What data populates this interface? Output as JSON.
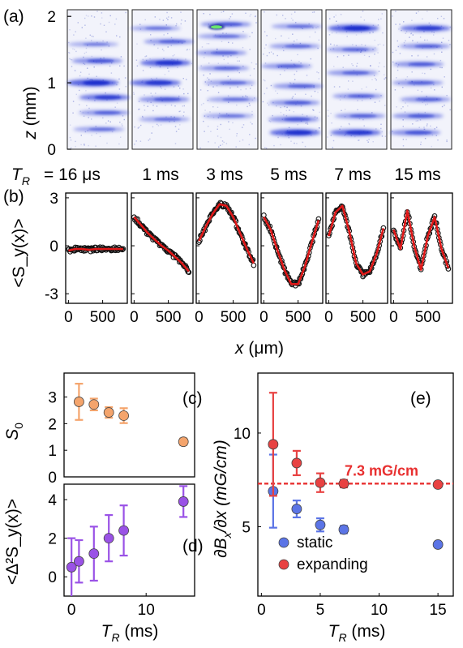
{
  "panel_labels": {
    "a": "(a)",
    "b": "(b)",
    "c": "(c)",
    "d": "(d)",
    "e": "(e)"
  },
  "chart_data": [
    {
      "panel": "a",
      "type": "heatmap",
      "ylabel_var": "z",
      "ylabel_unit": " (mm)",
      "y_ticks": [
        "0",
        "1",
        "2"
      ],
      "ylim": [
        0,
        2.1
      ],
      "tr_prefix": "T",
      "tr_sub": "R",
      "columns": [
        "= 16 μs",
        "1 ms",
        "3 ms",
        "5 ms",
        "7 ms",
        "15 ms"
      ],
      "stripes": [
        [
          [
            1.33,
            0.55
          ],
          [
            1.0,
            1.0
          ],
          [
            0.78,
            0.75
          ],
          [
            0.55,
            0.45
          ],
          [
            0.3,
            0.35
          ],
          [
            1.58,
            0.25
          ]
        ],
        [
          [
            1.62,
            0.45
          ],
          [
            1.3,
            0.9
          ],
          [
            1.0,
            0.85
          ],
          [
            0.75,
            0.55
          ],
          [
            0.45,
            0.35
          ],
          [
            1.82,
            0.3
          ]
        ],
        [
          [
            1.88,
            0.5
          ],
          [
            1.7,
            0.35
          ],
          [
            1.45,
            0.45
          ],
          [
            1.22,
            0.4
          ],
          [
            1.0,
            0.4
          ],
          [
            0.75,
            0.35
          ],
          [
            0.5,
            0.3
          ]
        ],
        [
          [
            1.85,
            0.35
          ],
          [
            1.55,
            0.4
          ],
          [
            1.25,
            0.45
          ],
          [
            0.95,
            0.45
          ],
          [
            0.7,
            0.5
          ],
          [
            0.45,
            0.55
          ],
          [
            0.25,
            0.95
          ]
        ],
        [
          [
            1.82,
            1.0
          ],
          [
            1.5,
            0.4
          ],
          [
            1.15,
            0.45
          ],
          [
            0.8,
            0.45
          ],
          [
            0.5,
            0.45
          ],
          [
            0.25,
            0.85
          ]
        ],
        [
          [
            1.82,
            0.8
          ],
          [
            1.55,
            0.45
          ],
          [
            1.28,
            0.5
          ],
          [
            1.0,
            0.45
          ],
          [
            0.75,
            0.45
          ],
          [
            0.5,
            0.5
          ],
          [
            0.25,
            0.55
          ]
        ]
      ],
      "bright_spot": {
        "column": 2,
        "z": 1.84
      }
    },
    {
      "panel": "b",
      "type": "scatter",
      "ylabel": "<S_y(x)>",
      "xlabel_var": "x",
      "xlabel_unit": " (μm)",
      "x_ticks": [
        "0",
        "500"
      ],
      "y_ticks": [
        "3",
        "0",
        "-3"
      ],
      "xlim": [
        -40,
        860
      ],
      "ylim": [
        -3.6,
        3.3
      ],
      "series": [
        {
          "x": [
            0,
            100,
            200,
            300,
            400,
            500,
            600,
            700,
            800
          ],
          "y": [
            -0.3,
            -0.2,
            -0.2,
            -0.25,
            -0.2,
            -0.2,
            -0.2,
            -0.2,
            -0.2
          ]
        },
        {
          "x": [
            0,
            100,
            200,
            300,
            400,
            500,
            600,
            700,
            800
          ],
          "y": [
            1.8,
            1.3,
            0.8,
            0.4,
            0.0,
            -0.3,
            -0.7,
            -1.1,
            -1.6
          ]
        },
        {
          "x": [
            0,
            100,
            200,
            300,
            400,
            500,
            600,
            700,
            800
          ],
          "y": [
            0.3,
            1.2,
            2.0,
            2.6,
            2.5,
            1.8,
            0.8,
            -0.2,
            -1.1
          ]
        },
        {
          "x": [
            0,
            100,
            200,
            300,
            400,
            500,
            600,
            700,
            800
          ],
          "y": [
            1.8,
            1.0,
            -0.3,
            -1.5,
            -2.4,
            -2.4,
            -1.3,
            0.2,
            1.6
          ]
        },
        {
          "x": [
            0,
            100,
            200,
            300,
            400,
            500,
            600,
            700,
            800
          ],
          "y": [
            0.6,
            2.1,
            2.5,
            0.9,
            -1.1,
            -1.8,
            -1.6,
            -0.5,
            1.1
          ]
        },
        {
          "x": [
            0,
            100,
            200,
            300,
            400,
            500,
            600,
            700,
            800
          ],
          "y": [
            1.0,
            -0.2,
            2.2,
            0.0,
            -1.5,
            0.6,
            1.8,
            -0.2,
            -1.4
          ]
        }
      ]
    },
    {
      "panel": "c",
      "type": "scatter",
      "ylabel_main": "S",
      "ylabel_sub": "0",
      "y_ticks": [
        "0",
        "1",
        "2",
        "3"
      ],
      "xlim": [
        -1,
        16.5
      ],
      "ylim": [
        0,
        3.9
      ],
      "color": "#f4a46c",
      "x": [
        1,
        3,
        5,
        7,
        15
      ],
      "y": [
        2.82,
        2.72,
        2.42,
        2.3,
        1.32
      ],
      "err": [
        0.68,
        0.22,
        0.2,
        0.28,
        0.12
      ]
    },
    {
      "panel": "d",
      "type": "scatter",
      "ylabel": "<Δ²S_y(x)>",
      "xlabel_main": "T",
      "xlabel_sub": "R",
      "xlabel_unit": " (ms)",
      "x_ticks": [
        "0",
        "10"
      ],
      "y_ticks": [
        "0",
        "2",
        "4"
      ],
      "xlim": [
        -1,
        16.5
      ],
      "ylim": [
        -1,
        4.8
      ],
      "color": "#9a52e6",
      "x": [
        0,
        1,
        3,
        5,
        7,
        15
      ],
      "y": [
        0.5,
        0.8,
        1.2,
        2.0,
        2.4,
        3.9
      ],
      "err": [
        1.5,
        1.1,
        1.4,
        1.2,
        1.3,
        0.8
      ]
    },
    {
      "panel": "e",
      "type": "scatter",
      "ylabel_main": "∂B",
      "ylabel_sub": "x",
      "ylabel_rest": "/∂x (mG/cm)",
      "xlabel_main": "T",
      "xlabel_sub": "R",
      "xlabel_unit": " (ms)",
      "x_ticks": [
        "0",
        "5",
        "10",
        "15"
      ],
      "y_ticks": [
        "5",
        "10"
      ],
      "xlim": [
        -0.3,
        16.3
      ],
      "ylim": [
        1.3,
        13.2
      ],
      "reference_line": 7.3,
      "reference_label": "7.3 mG/cm",
      "series": [
        {
          "name": "static",
          "color": "#5b74e6",
          "x": [
            1,
            3,
            5,
            7,
            15
          ],
          "y": [
            6.9,
            5.95,
            5.1,
            4.85,
            4.05
          ],
          "err": [
            1.95,
            0.45,
            0.35,
            0.2,
            0.12
          ]
        },
        {
          "name": "expanding",
          "color": "#e84242",
          "x": [
            1,
            3,
            5,
            7,
            15
          ],
          "y": [
            9.4,
            8.4,
            7.35,
            7.3,
            7.25
          ],
          "err": [
            2.75,
            0.65,
            0.5,
            0.2,
            0.12
          ]
        }
      ]
    }
  ]
}
